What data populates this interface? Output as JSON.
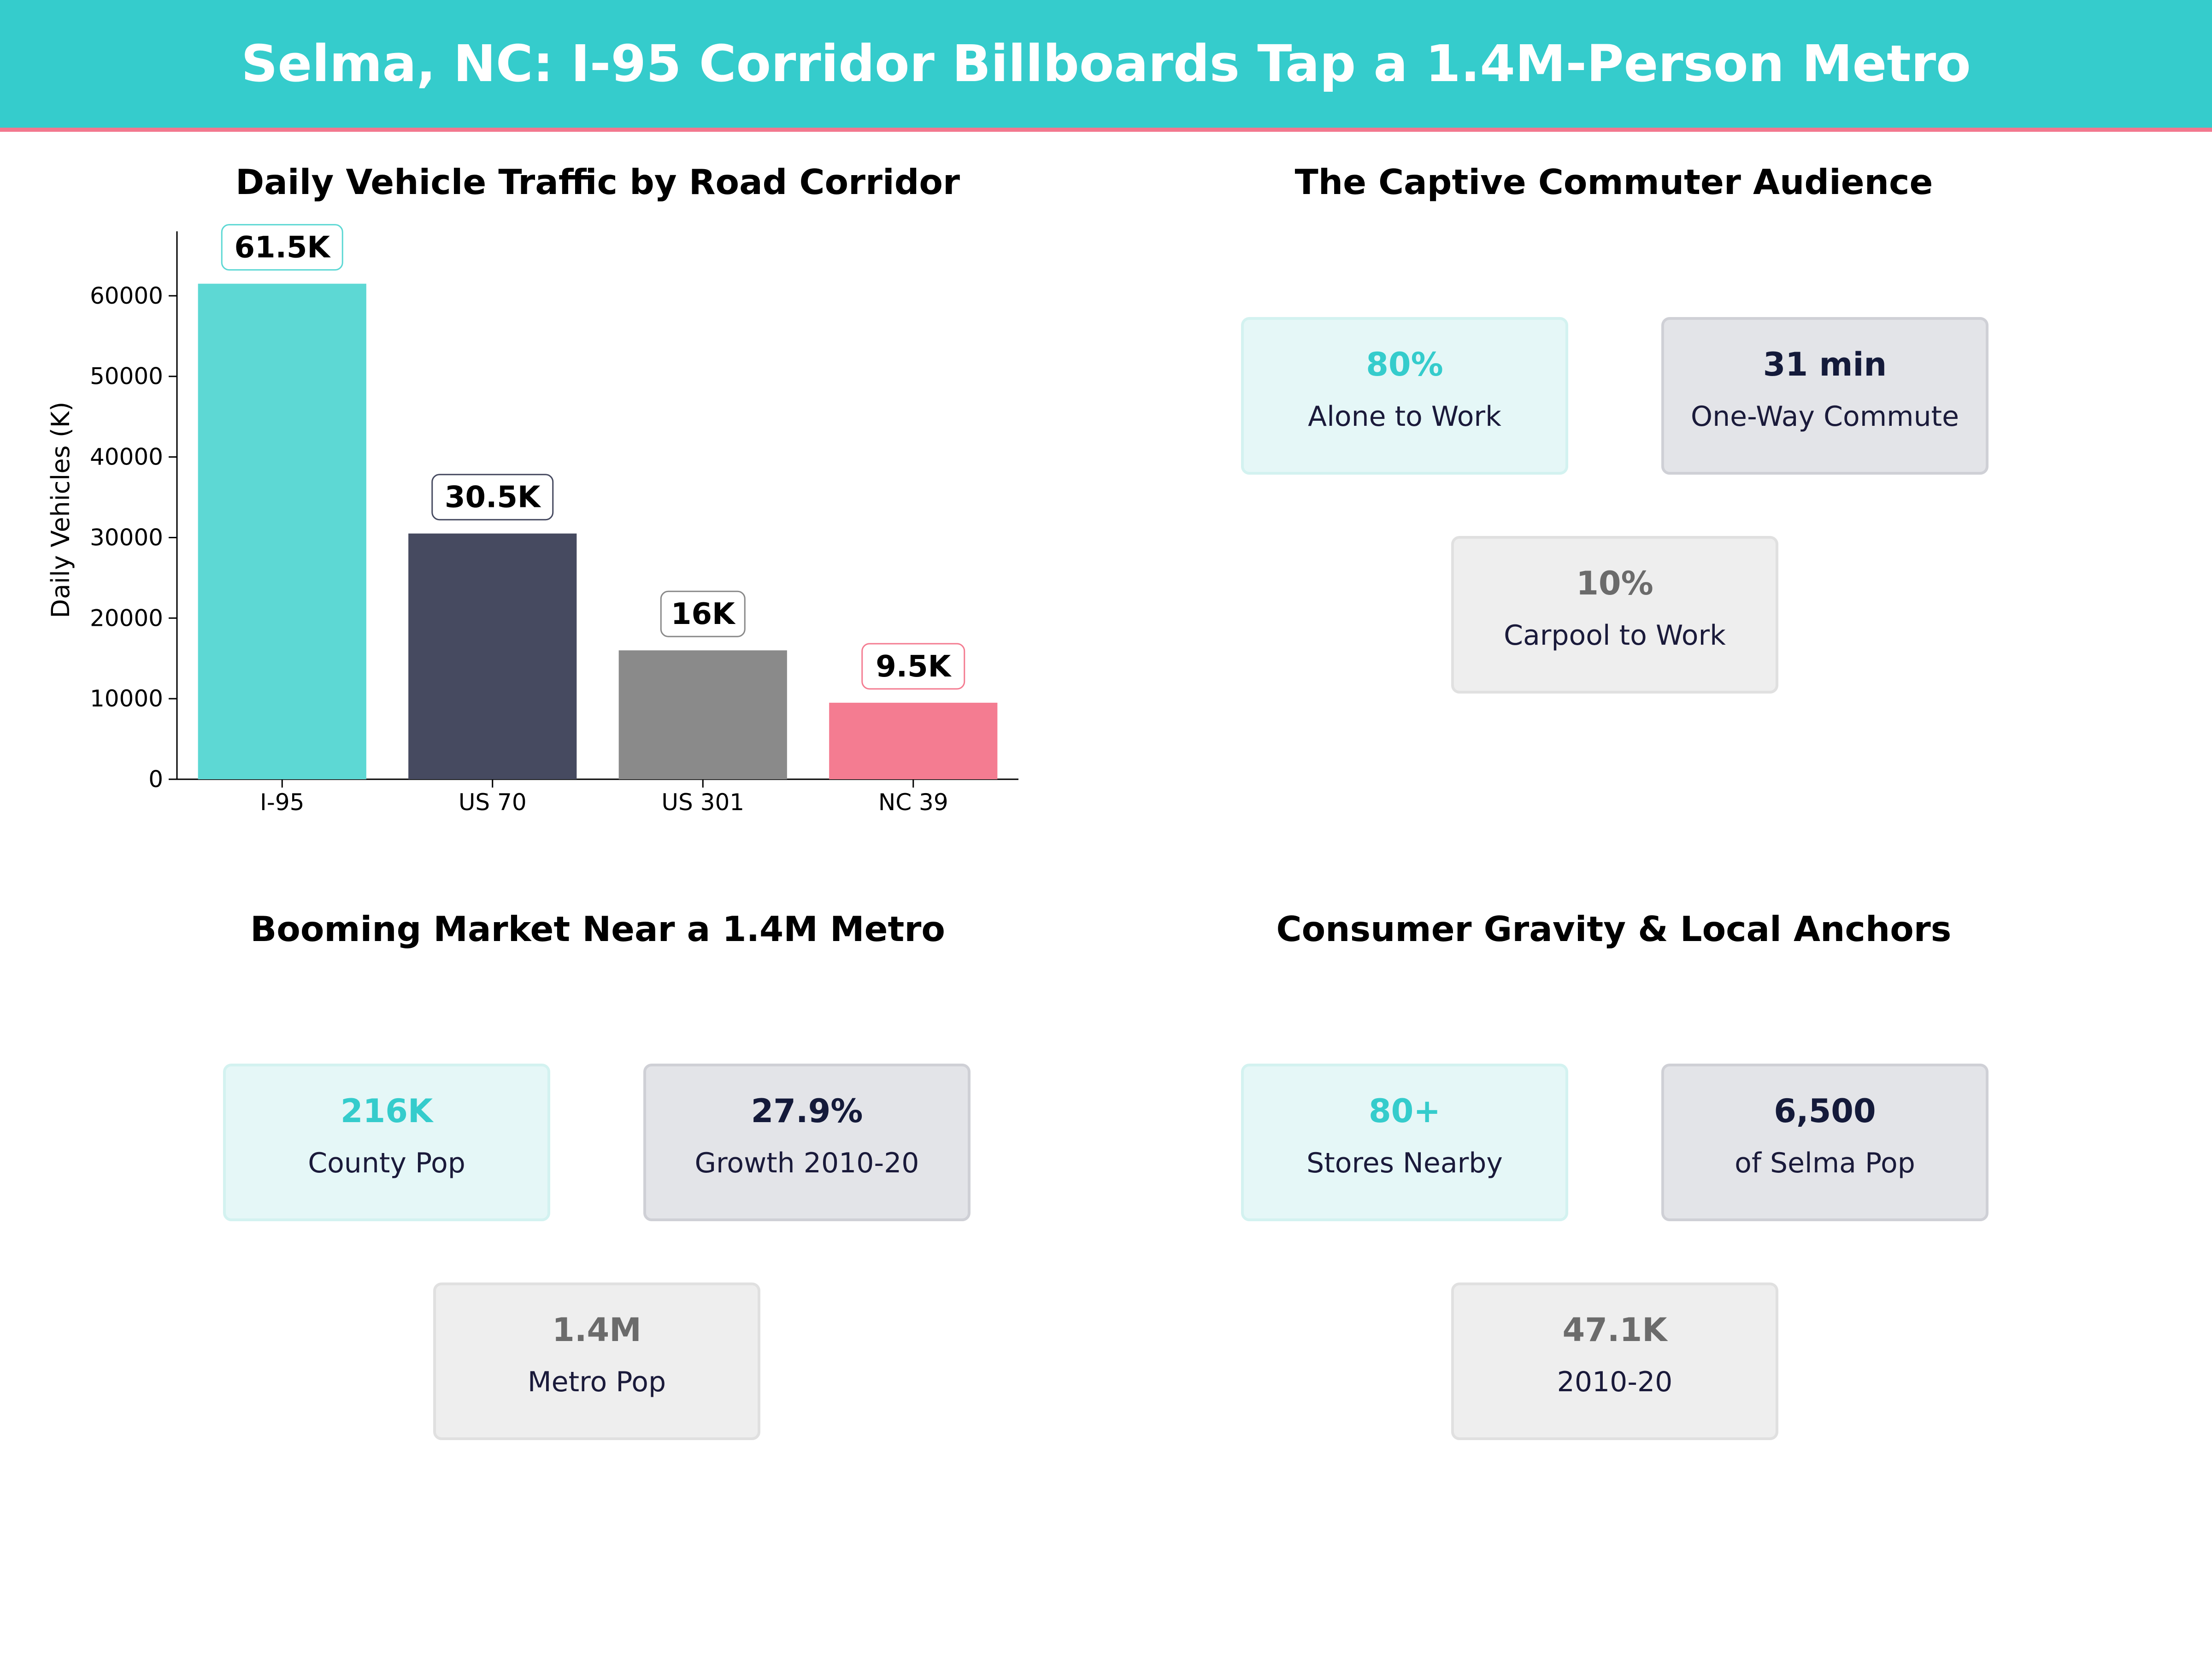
{
  "banner": {
    "title": "Selma, NC: I-95 Corridor Billboards Tap a 1.4M-Person Metro",
    "color": "#35cccc",
    "accent": "#f2788e"
  },
  "chart_data": {
    "type": "bar",
    "title": "Daily Vehicle Traffic by Road Corridor",
    "xlabel": "",
    "ylabel": "Daily Vehicles (K)",
    "categories": [
      "I-95",
      "US 70",
      "US 301",
      "NC 39"
    ],
    "values": [
      61500,
      30500,
      16000,
      9500
    ],
    "data_labels": [
      "61.5K",
      "30.5K",
      "16K",
      "9.5K"
    ],
    "colors": [
      "#5dd8d4",
      "#464a60",
      "#8a8a8a",
      "#f47c91"
    ],
    "label_border_colors": [
      "#5dd8d4",
      "#464a60",
      "#8a8a8a",
      "#f47c91"
    ],
    "yticks": [
      0,
      10000,
      20000,
      30000,
      40000,
      50000,
      60000
    ],
    "ylim": [
      0,
      68000
    ],
    "grid": false
  },
  "panels": {
    "commute": {
      "title": "The Captive Commuter Audience",
      "cards": [
        {
          "value": "80%",
          "label": "Alone to Work",
          "style": "teal"
        },
        {
          "value": "31 min",
          "label": "One-Way Commute",
          "style": "navy"
        },
        {
          "value": "10%",
          "label": "Carpool to Work",
          "style": "gray"
        }
      ]
    },
    "market": {
      "title": "Booming Market Near a 1.4M Metro",
      "cards": [
        {
          "value": "216K",
          "label": "County Pop",
          "style": "teal"
        },
        {
          "value": "27.9%",
          "label": "Growth 2010-20",
          "style": "navy"
        },
        {
          "value": "1.4M",
          "label": "Metro Pop",
          "style": "gray"
        }
      ]
    },
    "gravity": {
      "title": "Consumer Gravity & Local Anchors",
      "cards": [
        {
          "value": "80+",
          "label": "Stores Nearby",
          "style": "teal"
        },
        {
          "value": "6,500",
          "label": "of Selma Pop",
          "style": "navy"
        },
        {
          "value": "47.1K",
          "label": "2010-20",
          "style": "gray"
        }
      ]
    }
  }
}
